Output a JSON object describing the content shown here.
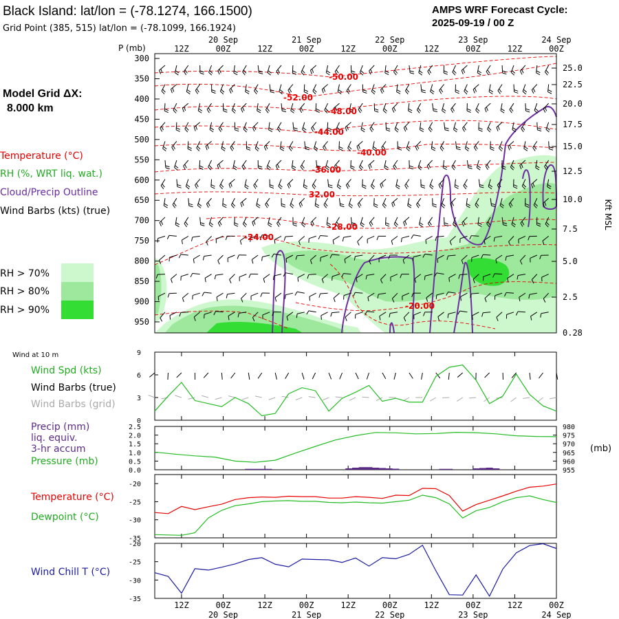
{
  "header": {
    "title": "Black Island:  lat/lon = (-78.1274, 166.1500)",
    "grid_point": "Grid Point (385, 515) lat/lon = (-78.1099, 166.1924)",
    "cycle_label": "AMPS WRF Forecast Cycle:",
    "cycle_value": "2025-09-19 / 00  Z",
    "model_grid_label": "Model Grid ΔX:",
    "model_grid_value": "8.000 km"
  },
  "legend": {
    "temperature": "Temperature (°C)",
    "rh": "RH (%, WRT liq. wat.)",
    "cloud": "Cloud/Precip Outline",
    "wind": "Wind Barbs (kts) (true)",
    "rh70": "RH > 70%",
    "rh80": "RH > 80%",
    "rh90": "RH > 90%"
  },
  "time_axis": {
    "top_hours": [
      "12Z",
      "00Z",
      "12Z",
      "00Z",
      "12Z",
      "00Z",
      "12Z",
      "00Z",
      "12Z",
      "00Z"
    ],
    "top_dates": [
      "20 Sep",
      "21 Sep",
      "22 Sep",
      "23 Sep",
      "24 Sep"
    ],
    "bottom_hours": [
      "12Z",
      "00Z",
      "12Z",
      "00Z",
      "12Z",
      "00Z",
      "12Z",
      "00Z",
      "12Z",
      "00Z"
    ],
    "bottom_dates": [
      "20 Sep",
      "21 Sep",
      "22 Sep",
      "23 Sep",
      "24 Sep"
    ]
  },
  "colors": {
    "temperature": "#e60000",
    "rh70": "#cdf7cd",
    "rh80": "#9de89d",
    "rh90": "#33dd33",
    "cloud": "#6a2d9f",
    "wind": "#000000",
    "wind_grid": "#aaaaaa",
    "speed": "#22bb22",
    "precip": "#5b2a86",
    "pressure": "#22bb22",
    "dewpoint": "#22bb22",
    "wind_chill": "#1a1aa0"
  },
  "chart_data": [
    {
      "type": "contour",
      "name": "cross-section",
      "yaxis_label": "P (mb)",
      "pressure_ticks": [
        "300",
        "350",
        "400",
        "450",
        "500",
        "550",
        "600",
        "650",
        "700",
        "750",
        "800",
        "850",
        "900",
        "950"
      ],
      "right_axis_label": "Kft MSL",
      "height_ticks": [
        "25.0",
        "22.5",
        "20.0",
        "17.5",
        "15.0",
        "12.5",
        "10.0",
        "7.5",
        "5.0",
        "2.5",
        "0.28"
      ],
      "temperature_labels": [
        "-50.00",
        "-52.00",
        "-48.00",
        "-44.00",
        "-40.00",
        "-36.00",
        "32.00",
        "-28.00",
        "-24.00",
        "-20.00"
      ]
    },
    {
      "type": "line",
      "name": "wind-10m",
      "panel_title": "Wind at 10 m",
      "legend": [
        "Wind Spd (kts)",
        "Wind Barbs (true)",
        "Wind Barbs (grid)"
      ],
      "yticks": [
        "9",
        "6",
        "3",
        "0"
      ],
      "ylim": [
        0,
        9
      ],
      "hours": [
        0,
        6,
        12,
        18,
        24,
        30,
        36,
        42,
        48,
        54,
        60,
        66,
        72,
        78,
        84,
        90,
        96,
        102,
        108,
        114,
        120,
        126,
        132,
        138,
        144,
        150,
        156,
        162,
        168,
        174,
        180
      ],
      "values": [
        1.2,
        3.2,
        5.0,
        2.6,
        2.2,
        1.8,
        3.0,
        2.2,
        0.6,
        0.9,
        3.5,
        4.3,
        3.9,
        1.2,
        2.9,
        3.7,
        4.6,
        2.5,
        2.9,
        2.4,
        2.4,
        5.8,
        7.0,
        7.3,
        5.3,
        2.2,
        3.2,
        6.1,
        3.4,
        1.9,
        1.2
      ]
    },
    {
      "type": "bar+line",
      "name": "precip-pressure",
      "legend": [
        "Precip (mm)",
        "liq. equiv.",
        "3-hr accum",
        "Pressure (mb)"
      ],
      "precip_yticks": [
        "2.5",
        "2.0",
        "1.5",
        "1.0",
        "0.5",
        "0.0"
      ],
      "precip_ylim": [
        0,
        2.5
      ],
      "pressure_yticks": [
        "980",
        "975",
        "970",
        "965",
        "960",
        "955"
      ],
      "pressure_ylim": [
        955,
        980
      ],
      "unit_label": "(mb)",
      "pressure_hours": [
        0,
        9,
        18,
        27,
        36,
        45,
        54,
        63,
        72,
        81,
        90,
        99,
        108,
        117,
        126,
        135,
        144,
        153,
        162,
        171,
        180
      ],
      "pressure": [
        965.2,
        964.0,
        963.0,
        962.3,
        960.0,
        959.3,
        960.5,
        964.6,
        968.5,
        972.2,
        974.7,
        976.5,
        976.3,
        975.7,
        975.9,
        976.6,
        976.4,
        975.7,
        974.6,
        974.2,
        974.1
      ],
      "precip_hours": [
        42,
        45,
        48,
        51,
        87,
        90,
        93,
        96,
        99,
        102,
        105,
        108,
        129,
        132,
        144,
        147,
        150,
        153
      ],
      "precip": [
        0.05,
        0.05,
        0.05,
        0.05,
        0.08,
        0.12,
        0.15,
        0.15,
        0.12,
        0.1,
        0.08,
        0.06,
        0.05,
        0.05,
        0.08,
        0.1,
        0.12,
        0.08
      ]
    },
    {
      "type": "line",
      "name": "temperature-dewpoint",
      "legend": [
        "Temperature (°C)",
        "Dewpoint (°C)"
      ],
      "yticks": [
        "-20",
        "-25",
        "-30",
        "-35"
      ],
      "ylim": [
        -35,
        -17.5
      ],
      "hours": [
        0,
        6,
        12,
        18,
        24,
        30,
        36,
        42,
        48,
        54,
        60,
        66,
        72,
        78,
        84,
        90,
        96,
        102,
        108,
        114,
        120,
        126,
        132,
        138,
        144,
        150,
        156,
        162,
        168,
        174,
        180
      ],
      "temperature": [
        -28.0,
        -28.3,
        -26.3,
        -27.2,
        -26.4,
        -25.7,
        -24.4,
        -23.9,
        -23.7,
        -23.8,
        -23.5,
        -23.6,
        -23.6,
        -24.0,
        -24.0,
        -23.6,
        -23.8,
        -24.1,
        -23.2,
        -23.3,
        -21.3,
        -21.4,
        -23.3,
        -27.6,
        -25.8,
        -24.6,
        -23.4,
        -22.1,
        -21.0,
        -20.7,
        -20.1
      ],
      "dewpoint": [
        -34.1,
        -34.2,
        -34.3,
        -33.6,
        -29.5,
        -27.4,
        -26.1,
        -25.6,
        -25.0,
        -24.8,
        -24.7,
        -24.9,
        -24.9,
        -25.2,
        -25.3,
        -25.1,
        -25.3,
        -25.4,
        -25.0,
        -24.6,
        -23.2,
        -23.9,
        -25.6,
        -29.5,
        -27.5,
        -26.6,
        -25.0,
        -23.9,
        -23.4,
        -24.4,
        -25.2
      ]
    },
    {
      "type": "line",
      "name": "wind-chill",
      "legend": [
        "Wind Chill T (°C)"
      ],
      "yticks": [
        "-20",
        "-25",
        "-30",
        "-35"
      ],
      "ylim": [
        -35,
        -20
      ],
      "hours": [
        0,
        6,
        12,
        18,
        24,
        30,
        36,
        42,
        48,
        54,
        60,
        66,
        72,
        78,
        84,
        90,
        96,
        102,
        108,
        114,
        120,
        126,
        132,
        138,
        144,
        150,
        156,
        162,
        168,
        174,
        180
      ],
      "values": [
        -28.0,
        -29.0,
        -33.6,
        -26.9,
        -27.3,
        -26.5,
        -25.6,
        -24.4,
        -23.9,
        -25.7,
        -26.4,
        -24.3,
        -24.4,
        -24.5,
        -25.2,
        -24.0,
        -26.2,
        -23.9,
        -24.2,
        -23.0,
        -20.5,
        -27.5,
        -34.0,
        -34.1,
        -28.6,
        -34.4,
        -27.0,
        -22.6,
        -20.6,
        -20.1,
        -21.4
      ]
    }
  ]
}
